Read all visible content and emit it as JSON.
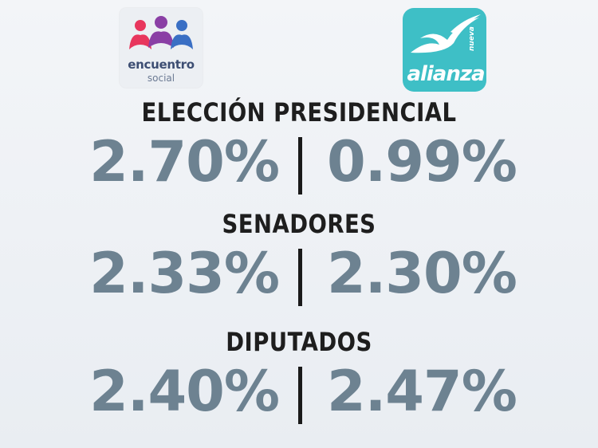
{
  "logos": {
    "left": {
      "word1": "encuentro",
      "word2": "social",
      "icon": "three-people-icon"
    },
    "right": {
      "small": "nueva",
      "main": "alianza",
      "icon": "bird-swoosh-icon"
    }
  },
  "sections": [
    {
      "title": "ELECCIÓN PRESIDENCIAL",
      "left_value": "2.70%",
      "right_value": "0.99%"
    },
    {
      "title": "SENADORES",
      "left_value": "2.33%",
      "right_value": "2.30%"
    },
    {
      "title": "DIPUTADOS",
      "left_value": "2.40%",
      "right_value": "2.47%"
    }
  ],
  "colors": {
    "value_text": "#6d8291",
    "heading_text": "#1e1e1e",
    "nueva_alianza_brand": "#3ebfc6",
    "encuentro_social_text": "#3d4e73"
  }
}
